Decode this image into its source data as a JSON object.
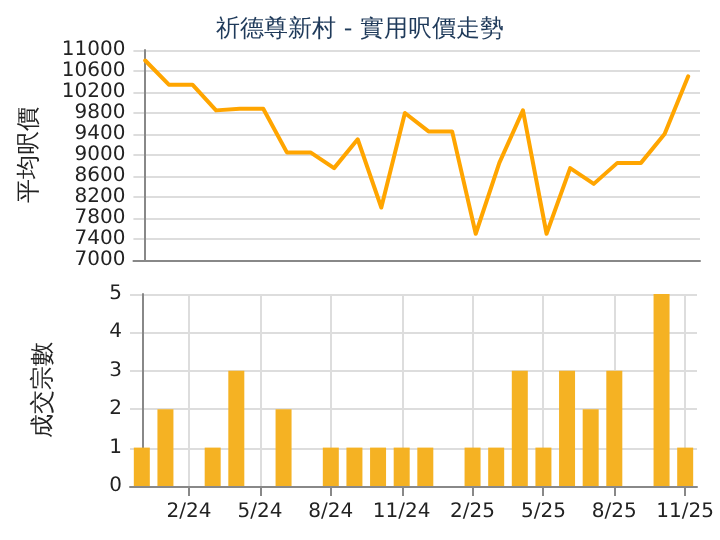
{
  "chart_data": [
    {
      "type": "line",
      "title": "祈德尊新村 - 實用呎價走勢",
      "ylabel": "平均呎價",
      "categories": [
        null,
        null,
        null,
        null,
        null,
        null,
        null,
        null,
        null,
        null,
        null,
        null,
        null,
        null,
        null,
        null,
        null,
        null,
        null,
        null,
        null,
        null,
        null,
        null
      ],
      "series": [
        {
          "color": "#ffa500",
          "values": [
            10800,
            10340,
            10340,
            9850,
            9880,
            9880,
            9050,
            9050,
            8750,
            9300,
            8000,
            9800,
            9450,
            9450,
            7500,
            8850,
            9850,
            7500,
            8750,
            8450,
            8850,
            8850,
            9400,
            10500
          ]
        }
      ],
      "ylim": [
        7000,
        11000
      ],
      "yticks": [
        7000,
        7400,
        7800,
        8200,
        8600,
        9000,
        9400,
        9800,
        10200,
        10600,
        11000
      ],
      "grid": "y",
      "marker": "none",
      "tick_labels": "y"
    },
    {
      "type": "bar",
      "ylabel": "成交宗數",
      "categories": [
        null,
        null,
        "2/24",
        null,
        null,
        "5/24",
        null,
        null,
        "8/24",
        null,
        null,
        "11/24",
        null,
        null,
        "2/25",
        null,
        null,
        "5/25",
        null,
        null,
        "8/25",
        null,
        null,
        "11/25"
      ],
      "values": [
        1,
        2,
        0,
        1,
        3,
        0,
        2,
        0,
        1,
        1,
        1,
        1,
        1,
        0,
        1,
        1,
        3,
        1,
        3,
        2,
        3,
        0,
        5,
        1
      ],
      "color": "#f5b223",
      "ylim": [
        0,
        5
      ],
      "yticks": [
        0,
        1,
        2,
        3,
        4,
        5
      ],
      "grid": true
    }
  ]
}
